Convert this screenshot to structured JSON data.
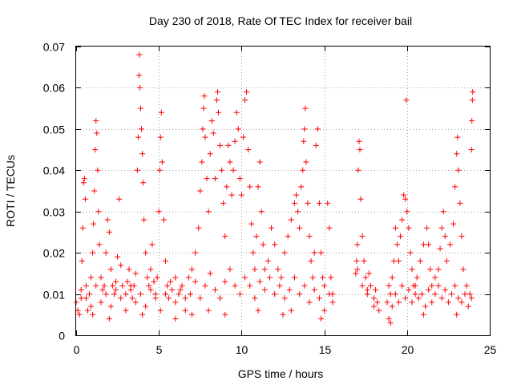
{
  "chart_data": {
    "type": "scatter",
    "title": "Day 230 of 2018, Rate Of TEC Index for receiver bail",
    "xlabel": "GPS time / hours",
    "ylabel": "ROTI / TECUs",
    "xlim": [
      0,
      25
    ],
    "ylim": [
      0,
      0.07
    ],
    "xticks": [
      0,
      5,
      10,
      15,
      20,
      25
    ],
    "yticks": [
      0,
      0.01,
      0.02,
      0.03,
      0.04,
      0.05,
      0.06,
      0.07
    ],
    "xtick_labels": [
      "0",
      "5",
      "10",
      "15",
      "20",
      "25"
    ],
    "ytick_labels": [
      "0",
      "0.01",
      "0.02",
      "0.03",
      "0.04",
      "0.05",
      "0.06",
      "0.07"
    ],
    "grid": true,
    "marker": "plus",
    "color": "#ff0000",
    "series": [
      {
        "points": [
          [
            0.0,
            0.008
          ],
          [
            0.1,
            0.006
          ],
          [
            0.2,
            0.005
          ],
          [
            0.3,
            0.009
          ],
          [
            0.35,
            0.018
          ],
          [
            0.4,
            0.026
          ],
          [
            0.45,
            0.037
          ],
          [
            0.5,
            0.038
          ],
          [
            0.55,
            0.033
          ],
          [
            0.6,
            0.012
          ],
          [
            0.7,
            0.006
          ],
          [
            0.8,
            0.01
          ],
          [
            0.9,
            0.014
          ],
          [
            1.0,
            0.02
          ],
          [
            1.05,
            0.027
          ],
          [
            1.1,
            0.035
          ],
          [
            1.15,
            0.045
          ],
          [
            1.2,
            0.052
          ],
          [
            1.25,
            0.049
          ],
          [
            1.3,
            0.04
          ],
          [
            1.35,
            0.03
          ],
          [
            1.4,
            0.022
          ],
          [
            1.5,
            0.014
          ],
          [
            1.6,
            0.011
          ],
          [
            1.7,
            0.012
          ],
          [
            1.8,
            0.02
          ],
          [
            1.9,
            0.028
          ],
          [
            2.0,
            0.025
          ],
          [
            2.1,
            0.016
          ],
          [
            2.2,
            0.012
          ],
          [
            2.3,
            0.01
          ],
          [
            2.4,
            0.011
          ],
          [
            2.5,
            0.019
          ],
          [
            2.6,
            0.033
          ],
          [
            2.7,
            0.017
          ],
          [
            2.8,
            0.012
          ],
          [
            3.0,
            0.01
          ],
          [
            3.1,
            0.013
          ],
          [
            3.2,
            0.016
          ],
          [
            3.3,
            0.011
          ],
          [
            3.4,
            0.009
          ],
          [
            3.5,
            0.012
          ],
          [
            3.6,
            0.015
          ],
          [
            3.7,
            0.04
          ],
          [
            3.75,
            0.048
          ],
          [
            3.8,
            0.063
          ],
          [
            3.82,
            0.068
          ],
          [
            3.85,
            0.06
          ],
          [
            3.9,
            0.055
          ],
          [
            3.95,
            0.05
          ],
          [
            4.0,
            0.044
          ],
          [
            4.05,
            0.037
          ],
          [
            4.1,
            0.028
          ],
          [
            4.2,
            0.02
          ],
          [
            4.3,
            0.014
          ],
          [
            4.4,
            0.012
          ],
          [
            4.5,
            0.016
          ],
          [
            4.6,
            0.022
          ],
          [
            4.7,
            0.013
          ],
          [
            4.8,
            0.01
          ],
          [
            4.9,
            0.014
          ],
          [
            5.0,
            0.03
          ],
          [
            5.05,
            0.04
          ],
          [
            5.1,
            0.048
          ],
          [
            5.15,
            0.054
          ],
          [
            5.2,
            0.042
          ],
          [
            5.3,
            0.028
          ],
          [
            5.4,
            0.018
          ],
          [
            5.5,
            0.012
          ],
          [
            5.6,
            0.009
          ],
          [
            5.8,
            0.011
          ],
          [
            6.0,
            0.014
          ],
          [
            6.2,
            0.01
          ],
          [
            6.4,
            0.012
          ],
          [
            6.6,
            0.009
          ],
          [
            6.8,
            0.014
          ],
          [
            7.0,
            0.016
          ],
          [
            7.2,
            0.02
          ],
          [
            7.4,
            0.026
          ],
          [
            7.5,
            0.035
          ],
          [
            7.6,
            0.042
          ],
          [
            7.65,
            0.05
          ],
          [
            7.7,
            0.055
          ],
          [
            7.75,
            0.058
          ],
          [
            7.8,
            0.048
          ],
          [
            7.9,
            0.038
          ],
          [
            8.0,
            0.03
          ],
          [
            8.1,
            0.044
          ],
          [
            8.2,
            0.052
          ],
          [
            8.3,
            0.049
          ],
          [
            8.4,
            0.038
          ],
          [
            8.5,
            0.057
          ],
          [
            8.55,
            0.059
          ],
          [
            8.6,
            0.054
          ],
          [
            8.7,
            0.046
          ],
          [
            8.8,
            0.04
          ],
          [
            8.9,
            0.032
          ],
          [
            9.0,
            0.024
          ],
          [
            9.1,
            0.036
          ],
          [
            9.2,
            0.046
          ],
          [
            9.3,
            0.042
          ],
          [
            9.4,
            0.034
          ],
          [
            9.5,
            0.04
          ],
          [
            9.6,
            0.047
          ],
          [
            9.7,
            0.054
          ],
          [
            9.8,
            0.05
          ],
          [
            9.9,
            0.038
          ],
          [
            10.0,
            0.034
          ],
          [
            10.1,
            0.048
          ],
          [
            10.2,
            0.057
          ],
          [
            10.3,
            0.059
          ],
          [
            10.4,
            0.045
          ],
          [
            10.5,
            0.036
          ],
          [
            10.6,
            0.027
          ],
          [
            10.7,
            0.02
          ],
          [
            10.8,
            0.016
          ],
          [
            10.9,
            0.024
          ],
          [
            11.0,
            0.036
          ],
          [
            11.1,
            0.042
          ],
          [
            11.2,
            0.03
          ],
          [
            11.3,
            0.022
          ],
          [
            11.4,
            0.016
          ],
          [
            11.6,
            0.018
          ],
          [
            11.8,
            0.026
          ],
          [
            12.0,
            0.022
          ],
          [
            12.2,
            0.016
          ],
          [
            12.4,
            0.014
          ],
          [
            12.6,
            0.02
          ],
          [
            12.8,
            0.024
          ],
          [
            13.0,
            0.028
          ],
          [
            13.2,
            0.032
          ],
          [
            13.3,
            0.034
          ],
          [
            13.4,
            0.03
          ],
          [
            13.5,
            0.026
          ],
          [
            13.6,
            0.036
          ],
          [
            13.7,
            0.04
          ],
          [
            13.75,
            0.047
          ],
          [
            13.8,
            0.05
          ],
          [
            13.85,
            0.055
          ],
          [
            13.9,
            0.042
          ],
          [
            14.0,
            0.032
          ],
          [
            14.1,
            0.024
          ],
          [
            14.2,
            0.018
          ],
          [
            14.3,
            0.014
          ],
          [
            14.4,
            0.02
          ],
          [
            14.5,
            0.046
          ],
          [
            14.6,
            0.05
          ],
          [
            14.7,
            0.032
          ],
          [
            14.8,
            0.02
          ],
          [
            14.9,
            0.014
          ],
          [
            15.0,
            0.012
          ],
          [
            15.2,
            0.032
          ],
          [
            15.3,
            0.026
          ],
          [
            15.4,
            0.014
          ],
          [
            15.5,
            0.01
          ],
          [
            16.95,
            0.018
          ],
          [
            17.0,
            0.022
          ],
          [
            17.05,
            0.04
          ],
          [
            17.1,
            0.047
          ],
          [
            17.15,
            0.045
          ],
          [
            17.2,
            0.033
          ],
          [
            17.3,
            0.024
          ],
          [
            17.4,
            0.018
          ],
          [
            17.5,
            0.014
          ],
          [
            17.6,
            0.011
          ],
          [
            17.7,
            0.015
          ],
          [
            17.8,
            0.012
          ],
          [
            18.0,
            0.009
          ],
          [
            18.1,
            0.011
          ],
          [
            18.2,
            0.008
          ],
          [
            18.8,
            0.008
          ],
          [
            18.9,
            0.012
          ],
          [
            19.0,
            0.01
          ],
          [
            19.1,
            0.014
          ],
          [
            19.2,
            0.018
          ],
          [
            19.3,
            0.026
          ],
          [
            19.4,
            0.022
          ],
          [
            19.5,
            0.018
          ],
          [
            19.6,
            0.024
          ],
          [
            19.7,
            0.028
          ],
          [
            19.8,
            0.034
          ],
          [
            19.9,
            0.033
          ],
          [
            19.95,
            0.057
          ],
          [
            20.0,
            0.03
          ],
          [
            20.1,
            0.026
          ],
          [
            20.2,
            0.02
          ],
          [
            20.3,
            0.016
          ],
          [
            20.4,
            0.012
          ],
          [
            20.5,
            0.01
          ],
          [
            20.6,
            0.014
          ],
          [
            20.8,
            0.018
          ],
          [
            21.0,
            0.022
          ],
          [
            21.2,
            0.026
          ],
          [
            21.3,
            0.022
          ],
          [
            21.4,
            0.016
          ],
          [
            21.5,
            0.012
          ],
          [
            21.7,
            0.014
          ],
          [
            21.9,
            0.016
          ],
          [
            22.0,
            0.021
          ],
          [
            22.1,
            0.026
          ],
          [
            22.2,
            0.03
          ],
          [
            22.3,
            0.024
          ],
          [
            22.4,
            0.018
          ],
          [
            22.6,
            0.022
          ],
          [
            22.8,
            0.027
          ],
          [
            22.9,
            0.036
          ],
          [
            23.0,
            0.044
          ],
          [
            23.05,
            0.048
          ],
          [
            23.1,
            0.04
          ],
          [
            23.2,
            0.032
          ],
          [
            23.3,
            0.024
          ],
          [
            23.4,
            0.016
          ],
          [
            23.6,
            0.012
          ],
          [
            23.8,
            0.01
          ],
          [
            23.9,
            0.045
          ],
          [
            23.92,
            0.052
          ],
          [
            23.95,
            0.057
          ],
          [
            23.97,
            0.059
          ],
          [
            0.3,
            0.011
          ],
          [
            0.6,
            0.009
          ],
          [
            0.9,
            0.007
          ],
          [
            1.2,
            0.012
          ],
          [
            1.5,
            0.008
          ],
          [
            1.8,
            0.01
          ],
          [
            2.1,
            0.007
          ],
          [
            2.4,
            0.013
          ],
          [
            2.7,
            0.009
          ],
          [
            3.0,
            0.006
          ],
          [
            3.3,
            0.012
          ],
          [
            3.6,
            0.008
          ],
          [
            3.9,
            0.01
          ],
          [
            4.2,
            0.007
          ],
          [
            4.5,
            0.011
          ],
          [
            4.8,
            0.009
          ],
          [
            5.1,
            0.006
          ],
          [
            5.4,
            0.01
          ],
          [
            5.7,
            0.013
          ],
          [
            6.0,
            0.008
          ],
          [
            6.3,
            0.011
          ],
          [
            6.6,
            0.006
          ],
          [
            6.9,
            0.01
          ],
          [
            7.2,
            0.013
          ],
          [
            7.5,
            0.009
          ],
          [
            7.8,
            0.012
          ],
          [
            8.1,
            0.015
          ],
          [
            8.4,
            0.011
          ],
          [
            8.7,
            0.009
          ],
          [
            9.0,
            0.013
          ],
          [
            9.3,
            0.016
          ],
          [
            9.6,
            0.012
          ],
          [
            9.9,
            0.01
          ],
          [
            10.2,
            0.014
          ],
          [
            10.5,
            0.012
          ],
          [
            10.8,
            0.009
          ],
          [
            11.1,
            0.013
          ],
          [
            11.4,
            0.011
          ],
          [
            11.7,
            0.014
          ],
          [
            12.0,
            0.01
          ],
          [
            12.3,
            0.012
          ],
          [
            12.6,
            0.009
          ],
          [
            12.9,
            0.011
          ],
          [
            13.2,
            0.014
          ],
          [
            13.5,
            0.01
          ],
          [
            13.8,
            0.012
          ],
          [
            14.1,
            0.008
          ],
          [
            14.4,
            0.011
          ],
          [
            14.7,
            0.009
          ],
          [
            15.0,
            0.006
          ],
          [
            15.3,
            0.01
          ],
          [
            15.5,
            0.008
          ],
          [
            17.0,
            0.016
          ],
          [
            17.3,
            0.012
          ],
          [
            17.6,
            0.01
          ],
          [
            18.0,
            0.007
          ],
          [
            18.3,
            0.006
          ],
          [
            18.9,
            0.004
          ],
          [
            19.1,
            0.007
          ],
          [
            19.3,
            0.01
          ],
          [
            19.5,
            0.008
          ],
          [
            19.7,
            0.012
          ],
          [
            19.9,
            0.009
          ],
          [
            20.1,
            0.011
          ],
          [
            20.3,
            0.008
          ],
          [
            20.5,
            0.012
          ],
          [
            20.7,
            0.009
          ],
          [
            20.9,
            0.01
          ],
          [
            21.1,
            0.007
          ],
          [
            21.3,
            0.011
          ],
          [
            21.5,
            0.008
          ],
          [
            21.7,
            0.01
          ],
          [
            21.9,
            0.012
          ],
          [
            22.1,
            0.009
          ],
          [
            22.3,
            0.011
          ],
          [
            22.5,
            0.008
          ],
          [
            22.7,
            0.01
          ],
          [
            22.9,
            0.012
          ],
          [
            23.1,
            0.009
          ],
          [
            23.3,
            0.008
          ],
          [
            23.5,
            0.01
          ],
          [
            23.7,
            0.007
          ],
          [
            23.9,
            0.009
          ],
          [
            2.0,
            0.004
          ],
          [
            6.0,
            0.004
          ],
          [
            7.0,
            0.005
          ],
          [
            9.0,
            0.005
          ],
          [
            11.0,
            0.006
          ],
          [
            12.5,
            0.005
          ],
          [
            14.8,
            0.004
          ],
          [
            19.0,
            0.003
          ],
          [
            21.0,
            0.005
          ],
          [
            23.0,
            0.005
          ],
          [
            4.0,
            0.005
          ],
          [
            8.0,
            0.006
          ],
          [
            13.0,
            0.006
          ],
          [
            1.0,
            0.005
          ],
          [
            16.9,
            0.015
          ]
        ]
      }
    ]
  }
}
